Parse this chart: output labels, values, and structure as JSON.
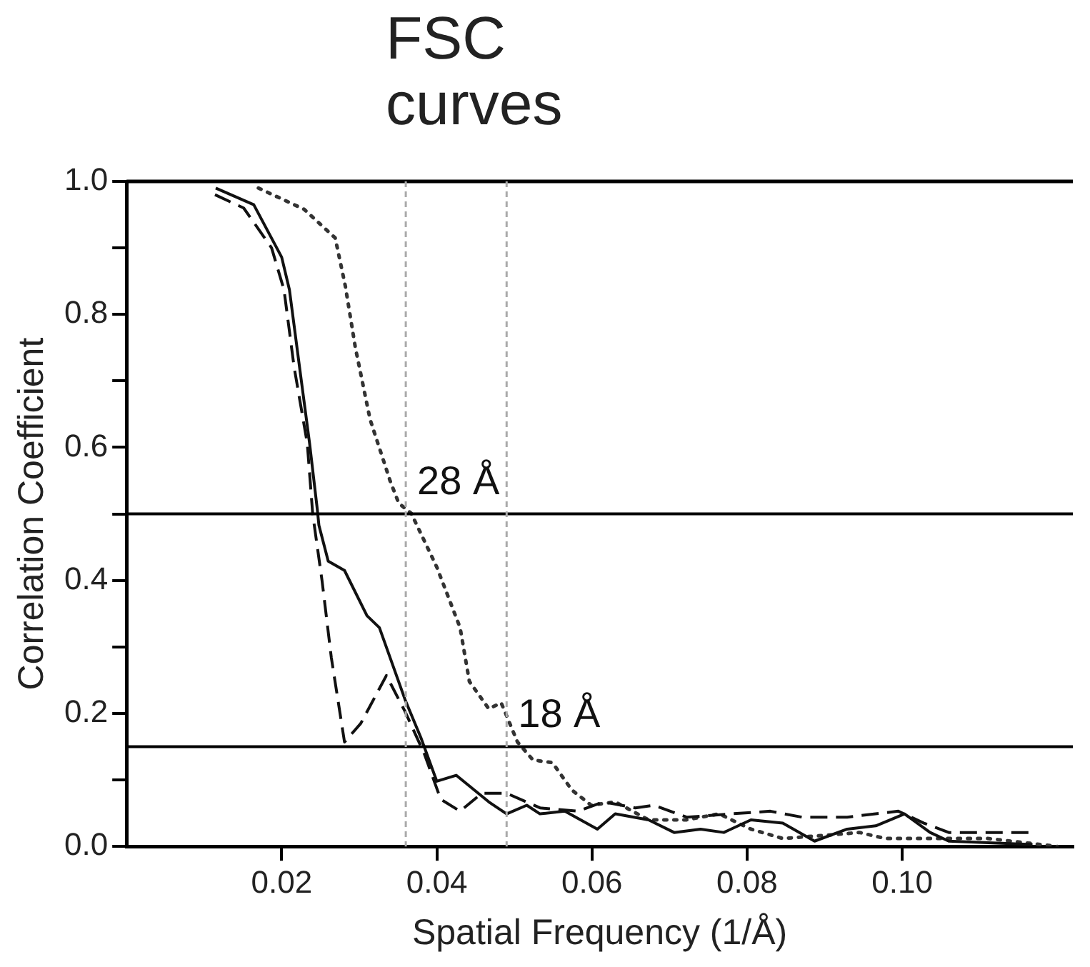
{
  "chart_data": {
    "type": "line",
    "title": "FSC curves",
    "xlabel": "Spatial Frequency (1/Å)",
    "ylabel": "Correlation Coefficient",
    "xlim": [
      0,
      0.122
    ],
    "xticks": [
      {
        "value": 0.02,
        "label": "0.02"
      },
      {
        "value": 0.04,
        "label": "0.04"
      },
      {
        "value": 0.06,
        "label": "0.06"
      },
      {
        "value": 0.08,
        "label": "0.08"
      },
      {
        "value": 0.1,
        "label": "0.10"
      }
    ],
    "ylim": [
      0,
      1
    ],
    "yticks": [
      {
        "value": 0,
        "label": "0.0"
      },
      {
        "value": 0.1,
        "label": null
      },
      {
        "value": 0.2,
        "label": "0.2"
      },
      {
        "value": 0.3,
        "label": null
      },
      {
        "value": 0.4,
        "label": "0.4"
      },
      {
        "value": 0.5,
        "label": null
      },
      {
        "value": 0.6,
        "label": "0.6"
      },
      {
        "value": 0.7,
        "label": null
      },
      {
        "value": 0.8,
        "label": "0.8"
      },
      {
        "value": 0.9,
        "label": null
      },
      {
        "value": 1,
        "label": "1.0"
      }
    ],
    "grid": false,
    "legend": false,
    "marker": "none",
    "series": [
      {
        "color": "#111111",
        "line_style": "solid",
        "x": [
          0.0115,
          0.0164,
          0.02,
          0.021,
          0.0223,
          0.0236,
          0.0246,
          0.0248,
          0.026,
          0.0281,
          0.031,
          0.0326,
          0.0359,
          0.038,
          0.04,
          0.0425,
          0.0467,
          0.049,
          0.0516,
          0.0533,
          0.0565,
          0.0607,
          0.063,
          0.0673,
          0.0706,
          0.074,
          0.077,
          0.0805,
          0.0846,
          0.0887,
          0.0929,
          0.0966,
          0.1003,
          0.1036,
          0.106,
          0.1168
        ],
        "values": [
          0.99,
          0.965,
          0.886,
          0.837,
          0.721,
          0.606,
          0.506,
          0.483,
          0.429,
          0.415,
          0.347,
          0.329,
          0.221,
          0.162,
          0.098,
          0.107,
          0.067,
          0.049,
          0.062,
          0.049,
          0.053,
          0.026,
          0.049,
          0.04,
          0.021,
          0.026,
          0.021,
          0.04,
          0.035,
          0.008,
          0.026,
          0.031,
          0.049,
          0.021,
          0.008,
          0.003
        ]
      },
      {
        "color": "#111111",
        "line_style": "dashed",
        "x": [
          0.0114,
          0.0151,
          0.0187,
          0.0203,
          0.0216,
          0.0233,
          0.024,
          0.0252,
          0.0264,
          0.0281,
          0.0302,
          0.0335,
          0.0359,
          0.0384,
          0.0405,
          0.043,
          0.0458,
          0.049,
          0.0533,
          0.0582,
          0.0615,
          0.0656,
          0.068,
          0.0722,
          0.078,
          0.083,
          0.0871,
          0.0929,
          0.0995,
          0.1028,
          0.106,
          0.1168
        ],
        "values": [
          0.98,
          0.96,
          0.9,
          0.837,
          0.721,
          0.606,
          0.5,
          0.4,
          0.284,
          0.157,
          0.185,
          0.257,
          0.203,
          0.139,
          0.071,
          0.053,
          0.08,
          0.08,
          0.058,
          0.053,
          0.067,
          0.058,
          0.062,
          0.044,
          0.049,
          0.053,
          0.044,
          0.044,
          0.053,
          0.035,
          0.021,
          0.021
        ]
      },
      {
        "color": "#333333",
        "line_style": "dotted",
        "x": [
          0.017,
          0.0229,
          0.0269,
          0.0282,
          0.0295,
          0.0314,
          0.034,
          0.0351,
          0.0367,
          0.04,
          0.043,
          0.0442,
          0.0467,
          0.0483,
          0.0504,
          0.0524,
          0.0549,
          0.0574,
          0.0599,
          0.063,
          0.0673,
          0.0722,
          0.0764,
          0.0805,
          0.0846,
          0.0904,
          0.0945,
          0.0978,
          0.102,
          0.111,
          0.12
        ],
        "values": [
          0.99,
          0.958,
          0.915,
          0.843,
          0.75,
          0.642,
          0.549,
          0.516,
          0.501,
          0.42,
          0.329,
          0.248,
          0.207,
          0.216,
          0.157,
          0.13,
          0.126,
          0.085,
          0.062,
          0.067,
          0.04,
          0.04,
          0.049,
          0.026,
          0.012,
          0.017,
          0.021,
          0.012,
          0.012,
          0.012,
          0
        ]
      }
    ],
    "ref_lines": [
      {
        "axis": "y",
        "value": 0.5,
        "color": "#000000",
        "line_style": "solid"
      },
      {
        "axis": "y",
        "value": 0.15,
        "color": "#000000",
        "line_style": "solid"
      },
      {
        "axis": "x",
        "value": 0.036,
        "color": "#aaaaaa",
        "line_style": "dashed"
      },
      {
        "axis": "x",
        "value": 0.049,
        "color": "#aaaaaa",
        "line_style": "dashed"
      }
    ],
    "annotations": [
      {
        "text": "28 Å",
        "x": 0.036,
        "y": 0.5
      },
      {
        "text": "18 Å",
        "x": 0.049,
        "y": 0.15
      }
    ]
  }
}
